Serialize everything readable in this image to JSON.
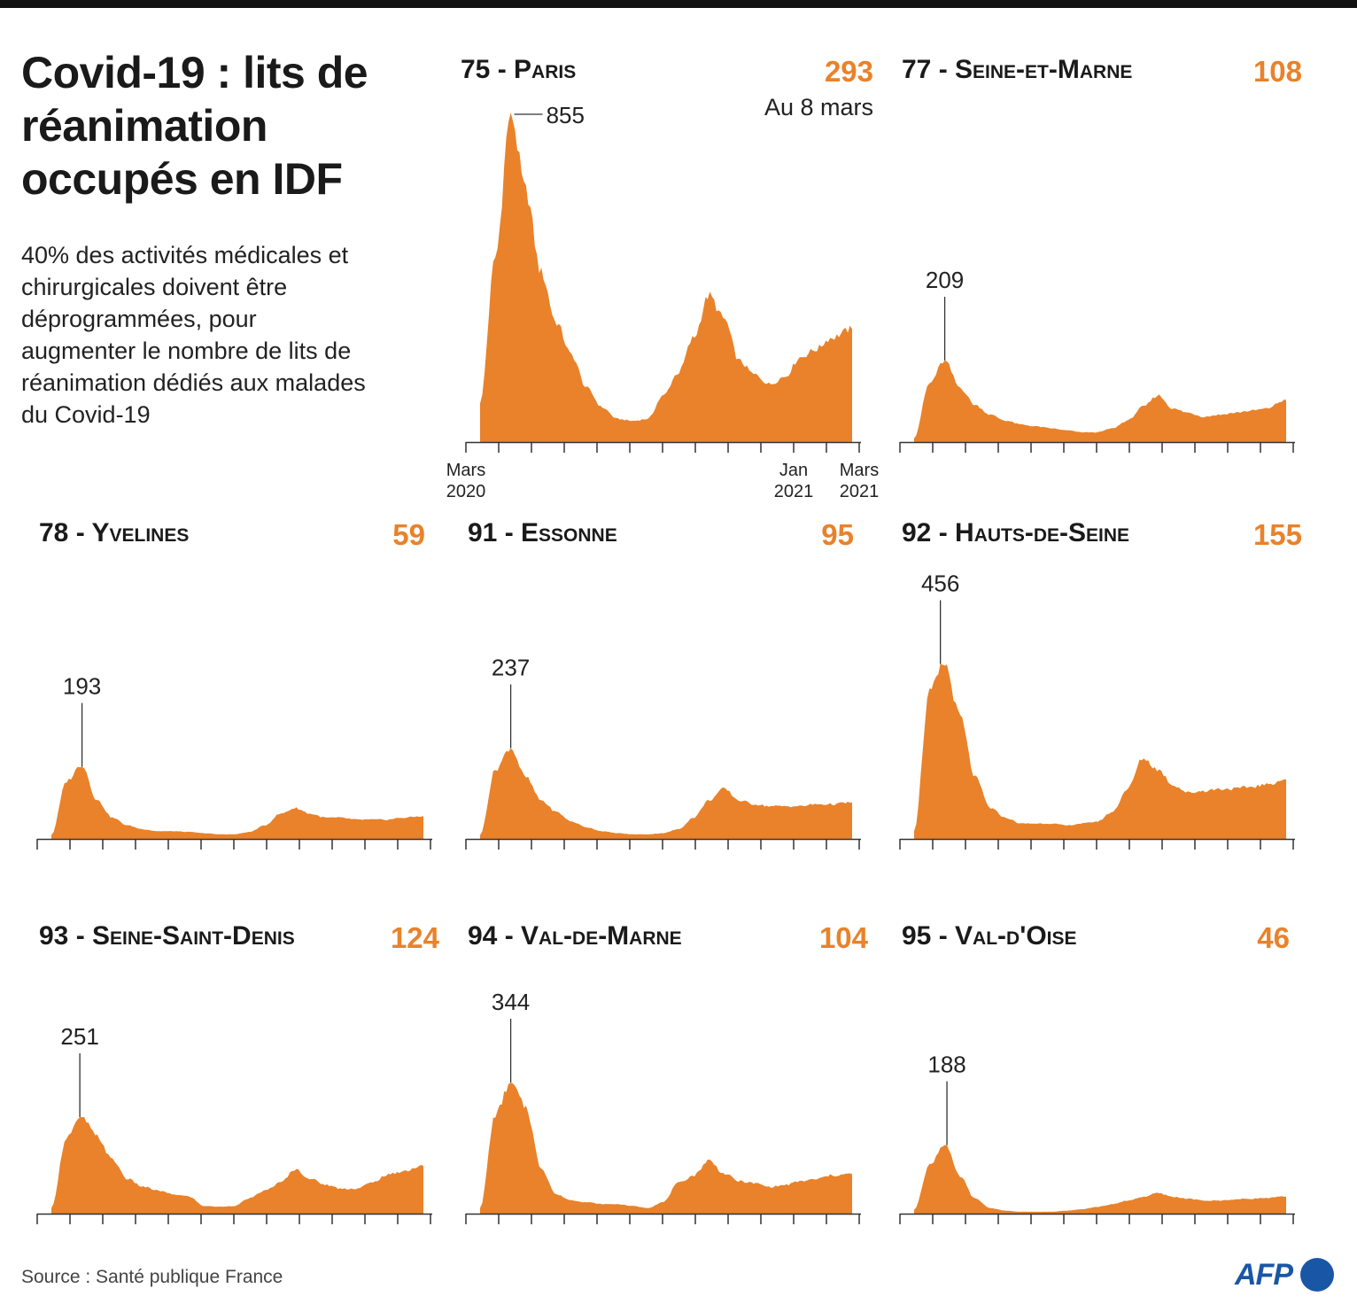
{
  "header": {
    "title": "Covid-19 : lits de réanimation occupés en IDF",
    "subtitle": "40% des activités médicales et chirurgicales doivent être déprogrammées, pour augmenter le nombre de lits de réanimation dédiés aux malades du Covid-19"
  },
  "footer": {
    "source": "Source : Santé publique France",
    "logo_text": "AFP"
  },
  "colors": {
    "area": "#e9822a",
    "accent": "#e9822a",
    "text": "#1a1a1a",
    "logo": "#1a56a6"
  },
  "chart_data": [
    {
      "type": "area",
      "name": "75 - Paris",
      "current_value": "293",
      "current_note": "Au 8 mars",
      "peak": 855,
      "x_tick_labels": [
        {
          "label": "Mars\n2020",
          "month": 0
        },
        {
          "label": "Jan\n2021",
          "month": 10
        },
        {
          "label": "Mars\n2021",
          "month": 12
        }
      ],
      "months": [
        0,
        0.5,
        1,
        1.5,
        2,
        2.5,
        3,
        3.5,
        4,
        4.5,
        5,
        5.5,
        6,
        6.5,
        7,
        7.5,
        8,
        8.5,
        9,
        9.5,
        10,
        10.5,
        11,
        11.5,
        12.2
      ],
      "values": [
        100,
        480,
        855,
        650,
        440,
        310,
        225,
        140,
        90,
        60,
        55,
        60,
        120,
        180,
        270,
        380,
        320,
        210,
        175,
        150,
        170,
        220,
        240,
        270,
        293
      ]
    },
    {
      "type": "area",
      "name": "77 - Seine-et-Marne",
      "current_value": "108",
      "peak": 209,
      "months": [
        0,
        0.5,
        1,
        1.5,
        2,
        2.5,
        3,
        3.5,
        4,
        4.5,
        5,
        5.5,
        6,
        6.5,
        7,
        7.5,
        8,
        8.5,
        9,
        9.5,
        10,
        10.5,
        11,
        11.5,
        12.2
      ],
      "values": [
        10,
        150,
        209,
        140,
        95,
        70,
        55,
        45,
        40,
        35,
        30,
        25,
        25,
        35,
        55,
        90,
        120,
        85,
        75,
        65,
        70,
        75,
        80,
        85,
        108
      ]
    },
    {
      "type": "area",
      "name": "78 - Yvelines",
      "current_value": "59",
      "peak": 193,
      "months": [
        0,
        0.5,
        1,
        1.5,
        2,
        2.5,
        3,
        3.5,
        4,
        4.5,
        5,
        5.5,
        6,
        6.5,
        7,
        7.5,
        8,
        8.5,
        9,
        9.5,
        10,
        10.5,
        11,
        11.5,
        12.2
      ],
      "values": [
        10,
        150,
        193,
        100,
        55,
        35,
        25,
        20,
        20,
        18,
        15,
        12,
        12,
        18,
        35,
        65,
        80,
        65,
        55,
        55,
        50,
        50,
        50,
        55,
        59
      ]
    },
    {
      "type": "area",
      "name": "91 - Essonne",
      "current_value": "95",
      "peak": 237,
      "months": [
        0,
        0.5,
        1,
        1.5,
        2,
        2.5,
        3,
        3.5,
        4,
        4.5,
        5,
        5.5,
        6,
        6.5,
        7,
        7.5,
        8,
        8.5,
        9,
        9.5,
        10,
        10.5,
        11,
        11.5,
        12.2
      ],
      "values": [
        10,
        180,
        237,
        160,
        100,
        70,
        45,
        30,
        20,
        15,
        12,
        12,
        15,
        25,
        55,
        100,
        130,
        100,
        90,
        85,
        85,
        85,
        90,
        90,
        95
      ]
    },
    {
      "type": "area",
      "name": "92 - Hauts-de-Seine",
      "current_value": "155",
      "peak": 456,
      "months": [
        0,
        0.5,
        1,
        1.5,
        2,
        2.5,
        3,
        3.5,
        4,
        4.5,
        5,
        5.5,
        6,
        6.5,
        7,
        7.5,
        8,
        8.5,
        9,
        9.5,
        10,
        10.5,
        11,
        11.5,
        12.2
      ],
      "values": [
        20,
        380,
        456,
        320,
        160,
        80,
        55,
        40,
        40,
        40,
        35,
        40,
        45,
        70,
        130,
        210,
        180,
        140,
        120,
        125,
        130,
        130,
        135,
        140,
        155
      ]
    },
    {
      "type": "area",
      "name": "93 - Seine-Saint-Denis",
      "current_value": "124",
      "peak": 251,
      "months": [
        0,
        0.5,
        1,
        1.5,
        2,
        2.5,
        3,
        3.5,
        4,
        4.5,
        5,
        5.5,
        6,
        6.5,
        7,
        7.5,
        8,
        8.5,
        9,
        9.5,
        10,
        10.5,
        11,
        11.5,
        12.2
      ],
      "values": [
        15,
        200,
        251,
        200,
        140,
        90,
        70,
        60,
        50,
        45,
        20,
        18,
        20,
        40,
        60,
        80,
        115,
        90,
        75,
        65,
        65,
        80,
        100,
        110,
        124
      ]
    },
    {
      "type": "area",
      "name": "94 - Val-de-Marne",
      "current_value": "104",
      "peak": 344,
      "months": [
        0,
        0.5,
        1,
        1.5,
        2,
        2.5,
        3,
        3.5,
        4,
        4.5,
        5,
        5.5,
        6,
        6.5,
        7,
        7.5,
        8,
        8.5,
        9,
        9.5,
        10,
        10.5,
        11,
        11.5,
        12.2
      ],
      "values": [
        15,
        260,
        344,
        280,
        120,
        50,
        35,
        30,
        25,
        25,
        20,
        15,
        30,
        80,
        100,
        140,
        105,
        85,
        80,
        70,
        75,
        85,
        90,
        100,
        104
      ]
    },
    {
      "type": "area",
      "name": "95 - Val-d'Oise",
      "current_value": "46",
      "peak": 188,
      "months": [
        0,
        0.5,
        1,
        1.5,
        2,
        2.5,
        3,
        3.5,
        4,
        4.5,
        5,
        5.5,
        6,
        6.5,
        7,
        7.5,
        8,
        8.5,
        9,
        9.5,
        10,
        10.5,
        11,
        11.5,
        12.2
      ],
      "values": [
        10,
        130,
        188,
        100,
        40,
        15,
        8,
        5,
        5,
        5,
        8,
        12,
        18,
        25,
        35,
        45,
        55,
        45,
        40,
        35,
        35,
        38,
        40,
        42,
        46
      ]
    }
  ]
}
